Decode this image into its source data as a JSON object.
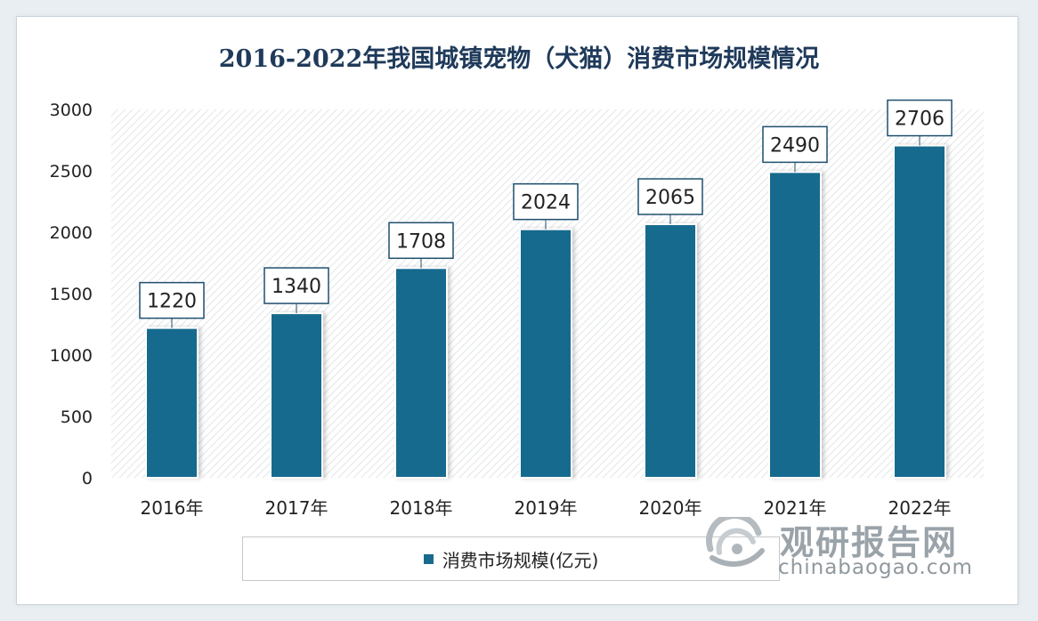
{
  "chart_data": {
    "type": "bar",
    "title": "2016-2022年我国城镇宠物（犬猫）消费市场规模情况",
    "categories": [
      "2016年",
      "2017年",
      "2018年",
      "2019年",
      "2020年",
      "2021年",
      "2022年"
    ],
    "series": [
      {
        "name": "消费市场规模(亿元)",
        "values": [
          1220,
          1340,
          1708,
          2024,
          2065,
          2490,
          2706
        ]
      }
    ],
    "data_labels": [
      "1220",
      "1340",
      "1708",
      "2024",
      "2065",
      "2490",
      "2706"
    ],
    "ylim": [
      0,
      3000
    ],
    "yticks": [
      "0",
      "500",
      "1000",
      "1500",
      "2000",
      "2500",
      "3000"
    ],
    "xlabel": "",
    "ylabel": "",
    "legend_position": "bottom",
    "grid": false,
    "background_pattern": "diagonal-hatch",
    "bar_color": "#196b8e"
  },
  "watermark": {
    "name_cn": "观研报告网",
    "domain": "chinabaogao.com",
    "logo_icon": "watermark-logo-icon"
  }
}
